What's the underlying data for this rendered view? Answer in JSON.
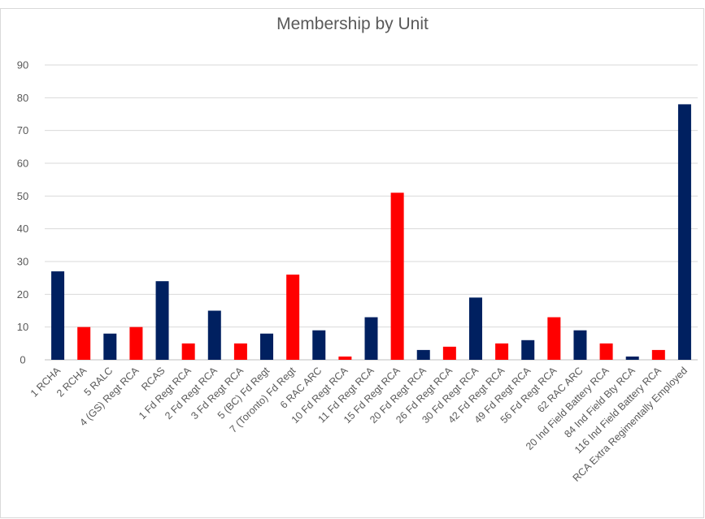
{
  "chart_data": {
    "type": "bar",
    "title": "Membership by Unit",
    "xlabel": "",
    "ylabel": "",
    "ylim": [
      0,
      90
    ],
    "yticks": [
      0,
      10,
      20,
      30,
      40,
      50,
      60,
      70,
      80,
      90
    ],
    "grid": true,
    "legend": "none",
    "categories": [
      "1 RCHA",
      "2 RCHA",
      "5 RALC",
      "4 (GS) Regt RCA",
      "RCAS",
      "1 Fd Regt RCA",
      "2 Fd Regt RCA",
      "3 Fd Regt RCA",
      "5 (BC) Fd Regt",
      "7 (Toronto) Fd Regt",
      "6 RAC ARC",
      "10 Fd Regt RCA",
      "11 Fd Regt RCA",
      "15 Fd Regt RCA",
      "20 Fd Regt RCA",
      "26 Fd Regt RCA",
      "30 Fd Regt RCA",
      "42 Fd Regt RCA",
      "49 Fd Regt RCA",
      "56 Fd Regt RCA",
      "62 RAC ARC",
      "20 Ind Field Battery RCA",
      "84 Ind Field Bty RCA",
      "116 Ind Field Battery RCA",
      "RCA Extra Regimentally Employed"
    ],
    "values": [
      27,
      10,
      8,
      10,
      24,
      5,
      15,
      5,
      8,
      26,
      9,
      1,
      13,
      51,
      3,
      4,
      19,
      5,
      6,
      13,
      9,
      5,
      1,
      3,
      78
    ],
    "bar_colors": [
      "#002060",
      "#ff0000",
      "#002060",
      "#ff0000",
      "#002060",
      "#ff0000",
      "#002060",
      "#ff0000",
      "#002060",
      "#ff0000",
      "#002060",
      "#ff0000",
      "#002060",
      "#ff0000",
      "#002060",
      "#ff0000",
      "#002060",
      "#ff0000",
      "#002060",
      "#ff0000",
      "#002060",
      "#ff0000",
      "#002060",
      "#ff0000",
      "#002060"
    ],
    "colors": {
      "navy": "#002060",
      "red": "#ff0000",
      "grid": "#d9d9d9",
      "axis": "#bfbfbf",
      "text": "#595959"
    }
  }
}
